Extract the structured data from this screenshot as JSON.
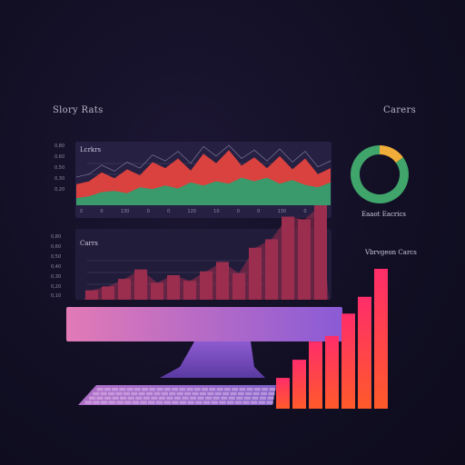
{
  "header": {
    "left_title": "Slory Rats",
    "right_title": "Carers"
  },
  "panel_top": {
    "title": "Lcrkrs"
  },
  "panel_bottom": {
    "title": "Carrs"
  },
  "donut_caption": "Eaaot Eacrics",
  "bars_caption": "Vbrvgeon Carcs",
  "colors": {
    "top_red": "#d9423e",
    "top_green": "#3a9a6b",
    "bottom_bar": "#9b2e4f",
    "donut_green": "#3fa56a",
    "donut_amber": "#f0ad3a",
    "monitor_left": "#e27ab6",
    "monitor_right": "#8a5bd6"
  },
  "icons": [
    "monitor-icon",
    "keyboard-icon"
  ],
  "chart_data": [
    {
      "type": "area",
      "title": "Lcrkrs",
      "y_ticks": [
        "0,80",
        "0,60",
        "0,50",
        "0,30",
        "0,20"
      ],
      "x_ticks": [
        "0",
        "0",
        "130",
        "0",
        "0",
        "120",
        "10",
        "0",
        "0",
        "130",
        "0",
        "0"
      ],
      "x": [
        0,
        1,
        2,
        3,
        4,
        5,
        6,
        7,
        8,
        9,
        10,
        11,
        12,
        13,
        14,
        15,
        16,
        17,
        18,
        19,
        20
      ],
      "series": [
        {
          "values": [
            0.35,
            0.4,
            0.55,
            0.45,
            0.6,
            0.5,
            0.72,
            0.62,
            0.78,
            0.58,
            0.86,
            0.7,
            0.92,
            0.66,
            0.8,
            0.62,
            0.82,
            0.6,
            0.78,
            0.52,
            0.62
          ]
        },
        {
          "values": [
            0.12,
            0.15,
            0.22,
            0.24,
            0.2,
            0.3,
            0.27,
            0.33,
            0.28,
            0.38,
            0.33,
            0.4,
            0.36,
            0.46,
            0.4,
            0.46,
            0.36,
            0.42,
            0.34,
            0.3,
            0.38
          ]
        }
      ],
      "ylim": [
        0,
        1
      ]
    },
    {
      "type": "bar",
      "title": "Carrs",
      "y_ticks": [
        "0,80",
        "0,60",
        "0,50",
        "0,40",
        "0,30",
        "0,20",
        "0,10"
      ],
      "values": [
        0.1,
        0.14,
        0.22,
        0.32,
        0.18,
        0.26,
        0.2,
        0.3,
        0.4,
        0.28,
        0.55,
        0.64,
        0.88,
        0.85,
        1.0
      ],
      "ylim": [
        0,
        1
      ]
    },
    {
      "type": "pie",
      "slices": [
        {
          "label": "green",
          "value": 85
        },
        {
          "label": "amber",
          "value": 15
        }
      ]
    },
    {
      "type": "bar",
      "title": "Vbrvgeon Carcs",
      "values": [
        0.22,
        0.35,
        0.48,
        0.52,
        0.68,
        0.8,
        1.0
      ],
      "ylim": [
        0,
        1
      ]
    }
  ]
}
